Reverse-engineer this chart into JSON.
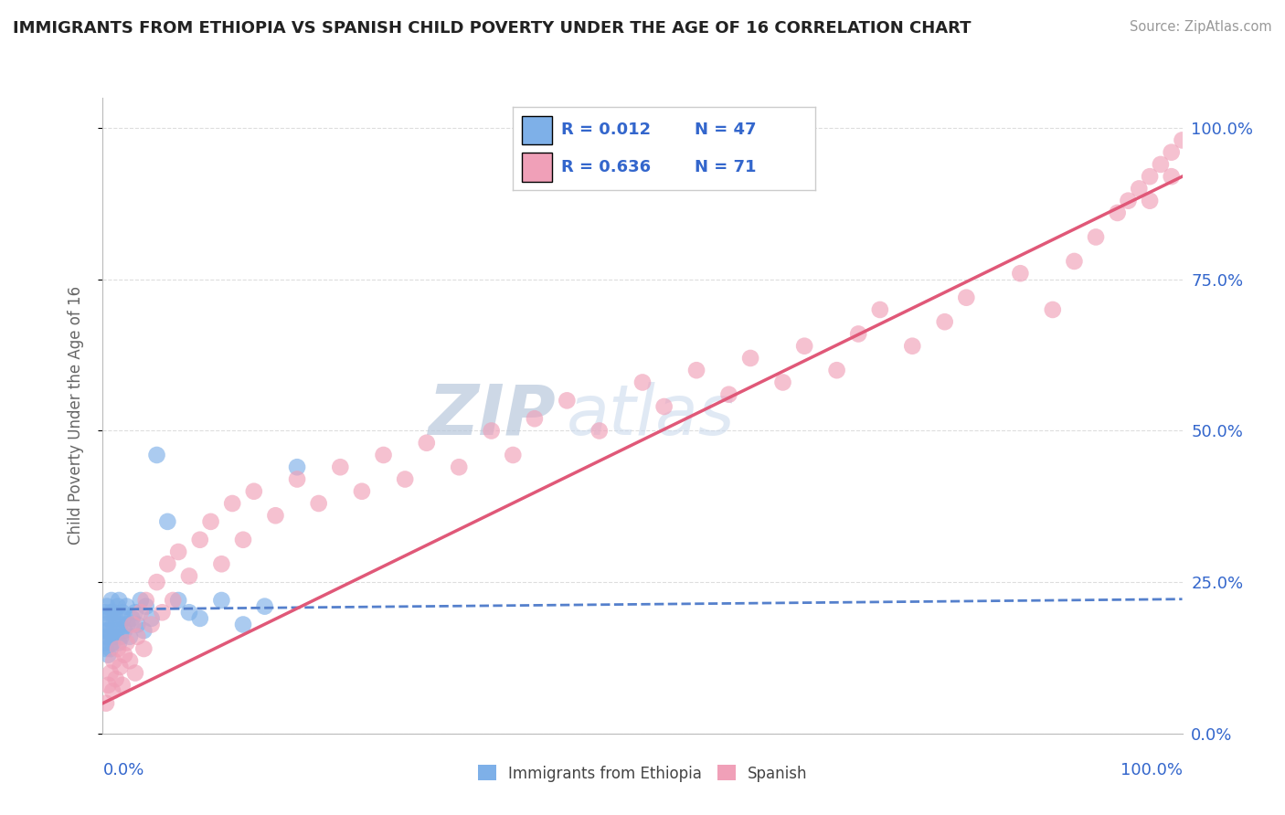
{
  "title": "IMMIGRANTS FROM ETHIOPIA VS SPANISH CHILD POVERTY UNDER THE AGE OF 16 CORRELATION CHART",
  "source": "Source: ZipAtlas.com",
  "ylabel": "Child Poverty Under the Age of 16",
  "legend_label1": "Immigrants from Ethiopia",
  "legend_label2": "Spanish",
  "R1": "0.012",
  "N1": "47",
  "R2": "0.636",
  "N2": "71",
  "color_blue": "#7EB0E8",
  "color_pink": "#F0A0B8",
  "color_blue_line": "#5580CC",
  "color_pink_line": "#E05878",
  "color_text_blue": "#3366CC",
  "watermark_color": "#C8D8EC",
  "grid_color": "#DDDDDD",
  "spine_color": "#BBBBBB",
  "ethiopia_x": [
    0.001,
    0.002,
    0.002,
    0.003,
    0.003,
    0.004,
    0.004,
    0.005,
    0.005,
    0.006,
    0.007,
    0.007,
    0.008,
    0.008,
    0.009,
    0.01,
    0.01,
    0.011,
    0.012,
    0.013,
    0.014,
    0.015,
    0.015,
    0.016,
    0.017,
    0.018,
    0.019,
    0.02,
    0.022,
    0.023,
    0.025,
    0.027,
    0.03,
    0.032,
    0.035,
    0.038,
    0.04,
    0.045,
    0.05,
    0.06,
    0.07,
    0.08,
    0.09,
    0.11,
    0.13,
    0.15,
    0.18
  ],
  "ethiopia_y": [
    0.17,
    0.15,
    0.2,
    0.14,
    0.18,
    0.16,
    0.21,
    0.13,
    0.19,
    0.17,
    0.14,
    0.2,
    0.16,
    0.22,
    0.15,
    0.18,
    0.2,
    0.16,
    0.19,
    0.17,
    0.21,
    0.15,
    0.22,
    0.18,
    0.16,
    0.2,
    0.19,
    0.17,
    0.21,
    0.18,
    0.16,
    0.19,
    0.2,
    0.18,
    0.22,
    0.17,
    0.21,
    0.19,
    0.46,
    0.35,
    0.22,
    0.2,
    0.19,
    0.22,
    0.18,
    0.21,
    0.44
  ],
  "spanish_x": [
    0.003,
    0.005,
    0.007,
    0.009,
    0.01,
    0.012,
    0.014,
    0.016,
    0.018,
    0.02,
    0.022,
    0.025,
    0.028,
    0.03,
    0.032,
    0.035,
    0.038,
    0.04,
    0.045,
    0.05,
    0.055,
    0.06,
    0.065,
    0.07,
    0.08,
    0.09,
    0.1,
    0.11,
    0.12,
    0.13,
    0.14,
    0.16,
    0.18,
    0.2,
    0.22,
    0.24,
    0.26,
    0.28,
    0.3,
    0.33,
    0.36,
    0.38,
    0.4,
    0.43,
    0.46,
    0.5,
    0.52,
    0.55,
    0.58,
    0.6,
    0.63,
    0.65,
    0.68,
    0.7,
    0.72,
    0.75,
    0.78,
    0.8,
    0.85,
    0.88,
    0.9,
    0.92,
    0.94,
    0.95,
    0.96,
    0.97,
    0.97,
    0.98,
    0.99,
    0.99,
    1.0
  ],
  "spanish_y": [
    0.05,
    0.08,
    0.1,
    0.07,
    0.12,
    0.09,
    0.14,
    0.11,
    0.08,
    0.13,
    0.15,
    0.12,
    0.18,
    0.1,
    0.16,
    0.2,
    0.14,
    0.22,
    0.18,
    0.25,
    0.2,
    0.28,
    0.22,
    0.3,
    0.26,
    0.32,
    0.35,
    0.28,
    0.38,
    0.32,
    0.4,
    0.36,
    0.42,
    0.38,
    0.44,
    0.4,
    0.46,
    0.42,
    0.48,
    0.44,
    0.5,
    0.46,
    0.52,
    0.55,
    0.5,
    0.58,
    0.54,
    0.6,
    0.56,
    0.62,
    0.58,
    0.64,
    0.6,
    0.66,
    0.7,
    0.64,
    0.68,
    0.72,
    0.76,
    0.7,
    0.78,
    0.82,
    0.86,
    0.88,
    0.9,
    0.92,
    0.88,
    0.94,
    0.96,
    0.92,
    0.98
  ],
  "eth_line_x": [
    0.0,
    1.0
  ],
  "eth_line_y": [
    0.205,
    0.222
  ],
  "sp_line_x": [
    0.0,
    1.0
  ],
  "sp_line_y": [
    0.05,
    0.92
  ],
  "xlim": [
    0.0,
    1.0
  ],
  "ylim": [
    0.0,
    1.05
  ],
  "yticks": [
    0.0,
    0.25,
    0.5,
    0.75,
    1.0
  ],
  "ytick_labels": [
    "0.0%",
    "25.0%",
    "50.0%",
    "75.0%",
    "100.0%"
  ]
}
